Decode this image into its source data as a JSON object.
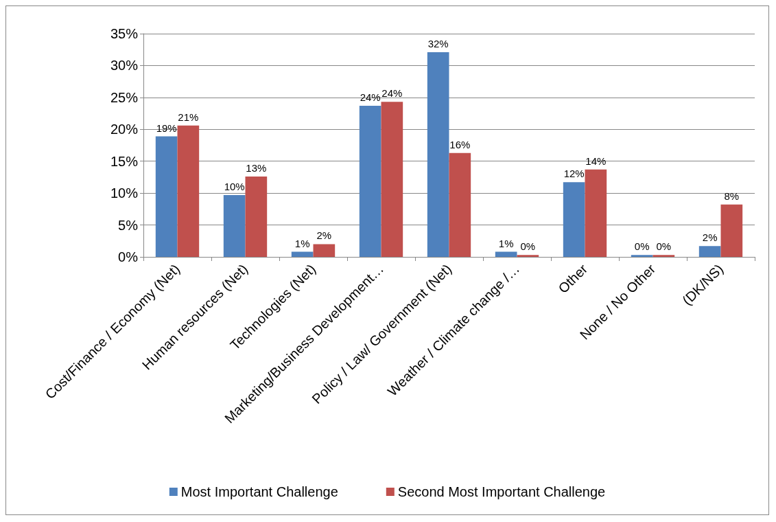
{
  "chart_data": {
    "type": "bar",
    "categories": [
      "Cost/Finance / Economy (Net)",
      "Human resources (Net)",
      "Technologies (Net)",
      "Marketing/Business Development…",
      "Policy / Law/ Government (Net)",
      "Weather / Climate change /…",
      "Other",
      "None / No Other",
      "(DK/NS)"
    ],
    "series": [
      {
        "name": "Most Important Challenge",
        "color": "#4f81bd",
        "values": [
          18.9,
          9.7,
          0.8,
          23.7,
          32.1,
          0.8,
          11.7,
          0.3,
          1.7
        ],
        "value_labels": [
          "19%",
          "10%",
          "1%",
          "24%",
          "32%",
          "1%",
          "12%",
          "0%",
          "2%"
        ]
      },
      {
        "name": "Second Most Important Challenge",
        "color": "#c0504d",
        "values": [
          20.6,
          12.6,
          2.0,
          24.3,
          16.3,
          0.3,
          13.7,
          0.3,
          8.2
        ],
        "value_labels": [
          "21%",
          "13%",
          "2%",
          "24%",
          "16%",
          "0%",
          "14%",
          "0%",
          "8%"
        ]
      }
    ],
    "ylim": [
      0,
      35
    ],
    "yticks": [
      {
        "value": 0,
        "label": "0%"
      },
      {
        "value": 5,
        "label": "5%"
      },
      {
        "value": 10,
        "label": "10%"
      },
      {
        "value": 15,
        "label": "15%"
      },
      {
        "value": 20,
        "label": "20%"
      },
      {
        "value": 25,
        "label": "25%"
      },
      {
        "value": 30,
        "label": "30%"
      },
      {
        "value": 35,
        "label": "35%"
      }
    ],
    "grid": "y",
    "legend": "bottom"
  }
}
